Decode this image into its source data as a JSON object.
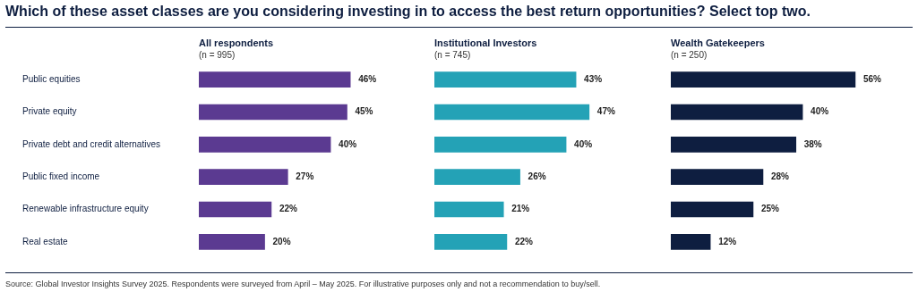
{
  "chart_data": [
    {
      "type": "other",
      "title": "Which of these asset classes are you considering investing in to access the best return opportunities? Select top two.",
      "annotations": [
        "Source: Global Investor Insights Survey 2025. Respondents were surveyed from April – May 2025. For illustrative purposes only and not a recommendation to buy/sell."
      ]
    },
    {
      "type": "bar",
      "orientation": "horizontal",
      "title": "All respondents",
      "subtitle": "(n = 995)",
      "categories": [
        "Public equities",
        "Private equity",
        "Private debt and credit alternatives",
        "Public fixed income",
        "Renewable infrastructure equity",
        "Real estate"
      ],
      "values": [
        46,
        45,
        40,
        27,
        22,
        20
      ],
      "value_labels": [
        "46%",
        "45%",
        "40%",
        "27%",
        "22%",
        "20%"
      ],
      "color": "#5b3a91",
      "tick_labels": "y"
    },
    {
      "type": "bar",
      "orientation": "horizontal",
      "title": "Institutional Investors",
      "subtitle": "(n = 745)",
      "categories": [
        null,
        null,
        null,
        null,
        null,
        null
      ],
      "values": [
        43,
        47,
        40,
        26,
        21,
        22
      ],
      "value_labels": [
        "43%",
        "47%",
        "40%",
        "26%",
        "21%",
        "22%"
      ],
      "color": "#24a2b6",
      "tick_labels": false
    },
    {
      "type": "bar",
      "orientation": "horizontal",
      "title": "Wealth Gatekeepers",
      "subtitle": "(n = 250)",
      "categories": [
        null,
        null,
        null,
        null,
        null,
        null
      ],
      "values": [
        56,
        40,
        38,
        28,
        25,
        12
      ],
      "value_labels": [
        "56%",
        "40%",
        "38%",
        "28%",
        "25%",
        "12%"
      ],
      "color": "#0e1e40",
      "tick_labels": false
    }
  ]
}
